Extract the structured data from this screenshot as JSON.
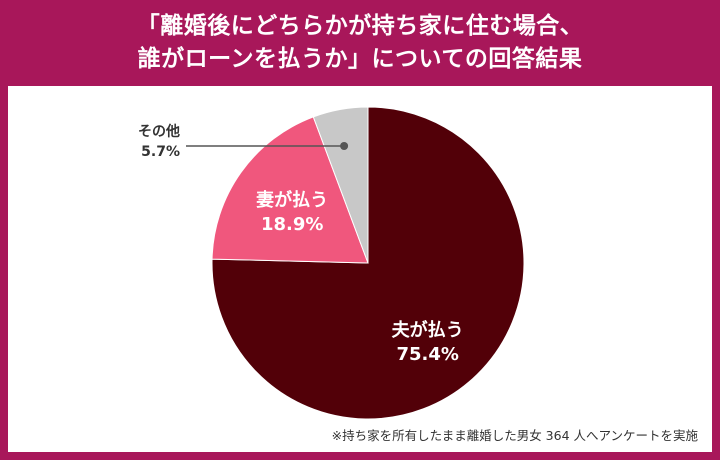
{
  "title": {
    "line1": "「離婚後にどちらかが持ち家に住む場合、",
    "line2": "誰がローンを払うか」についての回答結果"
  },
  "footnote": "※持ち家を所有したまま離婚した男女 364 人へアンケートを実施",
  "colors": {
    "frame": "#a8175a",
    "husband": "#520008",
    "wife": "#f0577d",
    "other": "#c8c8c8"
  },
  "chart_data": {
    "type": "pie",
    "title": "「離婚後にどちらかが持ち家に住む場合、誰がローンを払うか」についての回答結果",
    "unit": "%",
    "slices": [
      {
        "label": "夫が払う",
        "value": 75.4,
        "value_text": "75.4%",
        "color": "#520008"
      },
      {
        "label": "妻が払う",
        "value": 18.9,
        "value_text": "18.9%",
        "color": "#f0577d"
      },
      {
        "label": "その他",
        "value": 5.7,
        "value_text": "5.7%",
        "color": "#c8c8c8"
      }
    ]
  }
}
